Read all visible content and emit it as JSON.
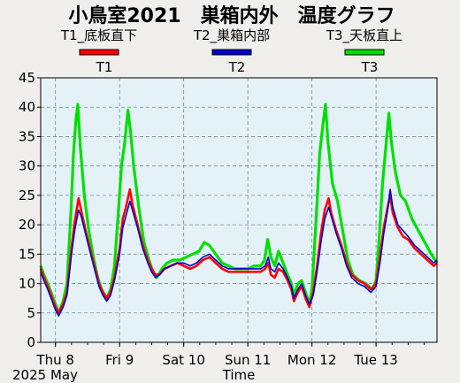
{
  "chart_data": {
    "type": "line",
    "title": "小鳥室2021　巣箱内外　温度グラフ",
    "xlabel": "Time",
    "x_date_label": "2025 May",
    "ylim": [
      0,
      45
    ],
    "y_ticks": [
      0,
      5,
      10,
      15,
      20,
      25,
      30,
      35,
      40,
      45
    ],
    "grid": true,
    "legend_position": "top",
    "x_ticks": [
      {
        "label": "Thu 8",
        "day": 0
      },
      {
        "label": "Fri 9",
        "day": 1
      },
      {
        "label": "Sat 10",
        "day": 2
      },
      {
        "label": "Sun 11",
        "day": 3
      },
      {
        "label": "Mon 12",
        "day": 4
      },
      {
        "label": "Tue 13",
        "day": 5
      }
    ],
    "x_range_days": [
      -0.23,
      5.95
    ],
    "series": [
      {
        "name": "T1",
        "description": "T1_底板直下",
        "color": "#ff0000",
        "points": [
          [
            -0.23,
            12.5
          ],
          [
            -0.18,
            11.0
          ],
          [
            -0.12,
            9.5
          ],
          [
            -0.05,
            7.5
          ],
          [
            0.0,
            6.0
          ],
          [
            0.05,
            5.0
          ],
          [
            0.12,
            6.5
          ],
          [
            0.18,
            8.5
          ],
          [
            0.25,
            16.0
          ],
          [
            0.3,
            20.5
          ],
          [
            0.36,
            24.5
          ],
          [
            0.4,
            22.5
          ],
          [
            0.48,
            18.5
          ],
          [
            0.56,
            15.0
          ],
          [
            0.62,
            12.5
          ],
          [
            0.68,
            10.0
          ],
          [
            0.74,
            8.5
          ],
          [
            0.8,
            7.5
          ],
          [
            0.86,
            8.5
          ],
          [
            0.92,
            11.0
          ],
          [
            1.0,
            16.0
          ],
          [
            1.05,
            21.0
          ],
          [
            1.1,
            23.0
          ],
          [
            1.16,
            26.0
          ],
          [
            1.2,
            23.5
          ],
          [
            1.28,
            20.0
          ],
          [
            1.36,
            16.5
          ],
          [
            1.44,
            14.0
          ],
          [
            1.5,
            12.5
          ],
          [
            1.56,
            11.5
          ],
          [
            1.62,
            11.5
          ],
          [
            1.7,
            12.5
          ],
          [
            1.8,
            13.0
          ],
          [
            1.9,
            13.5
          ],
          [
            2.0,
            13.0
          ],
          [
            2.1,
            12.5
          ],
          [
            2.2,
            13.0
          ],
          [
            2.3,
            14.0
          ],
          [
            2.4,
            14.5
          ],
          [
            2.5,
            13.5
          ],
          [
            2.6,
            12.5
          ],
          [
            2.7,
            12.0
          ],
          [
            2.8,
            12.0
          ],
          [
            2.9,
            12.0
          ],
          [
            3.0,
            12.0
          ],
          [
            3.1,
            12.0
          ],
          [
            3.2,
            12.0
          ],
          [
            3.27,
            12.5
          ],
          [
            3.32,
            13.5
          ],
          [
            3.36,
            11.5
          ],
          [
            3.42,
            11.0
          ],
          [
            3.48,
            12.5
          ],
          [
            3.55,
            12.0
          ],
          [
            3.62,
            10.5
          ],
          [
            3.68,
            9.0
          ],
          [
            3.72,
            7.0
          ],
          [
            3.78,
            8.5
          ],
          [
            3.84,
            9.5
          ],
          [
            3.9,
            7.5
          ],
          [
            3.96,
            6.0
          ],
          [
            4.02,
            8.5
          ],
          [
            4.08,
            13.0
          ],
          [
            4.14,
            18.5
          ],
          [
            4.2,
            22.5
          ],
          [
            4.26,
            24.5
          ],
          [
            4.3,
            22.0
          ],
          [
            4.38,
            19.0
          ],
          [
            4.46,
            16.5
          ],
          [
            4.54,
            13.5
          ],
          [
            4.62,
            11.5
          ],
          [
            4.72,
            10.5
          ],
          [
            4.82,
            10.0
          ],
          [
            4.92,
            9.0
          ],
          [
            5.0,
            10.0
          ],
          [
            5.06,
            14.5
          ],
          [
            5.12,
            19.5
          ],
          [
            5.18,
            23.0
          ],
          [
            5.22,
            25.0
          ],
          [
            5.26,
            22.0
          ],
          [
            5.34,
            19.5
          ],
          [
            5.42,
            18.0
          ],
          [
            5.5,
            17.5
          ],
          [
            5.6,
            16.0
          ],
          [
            5.7,
            15.0
          ],
          [
            5.8,
            14.0
          ],
          [
            5.9,
            13.0
          ],
          [
            5.95,
            13.5
          ]
        ]
      },
      {
        "name": "T2",
        "description": "T2_巣箱内部",
        "color": "#0000cc",
        "points": [
          [
            -0.23,
            12.0
          ],
          [
            -0.18,
            10.5
          ],
          [
            -0.12,
            9.0
          ],
          [
            -0.05,
            7.0
          ],
          [
            0.0,
            5.5
          ],
          [
            0.05,
            4.5
          ],
          [
            0.12,
            6.0
          ],
          [
            0.18,
            8.0
          ],
          [
            0.25,
            15.0
          ],
          [
            0.3,
            19.0
          ],
          [
            0.36,
            22.5
          ],
          [
            0.4,
            21.5
          ],
          [
            0.48,
            18.0
          ],
          [
            0.56,
            14.5
          ],
          [
            0.62,
            12.0
          ],
          [
            0.68,
            9.5
          ],
          [
            0.74,
            8.0
          ],
          [
            0.8,
            7.0
          ],
          [
            0.86,
            8.0
          ],
          [
            0.92,
            10.5
          ],
          [
            1.0,
            15.0
          ],
          [
            1.05,
            19.5
          ],
          [
            1.1,
            21.5
          ],
          [
            1.16,
            24.0
          ],
          [
            1.2,
            22.5
          ],
          [
            1.28,
            19.5
          ],
          [
            1.36,
            16.0
          ],
          [
            1.44,
            13.5
          ],
          [
            1.5,
            12.0
          ],
          [
            1.56,
            11.0
          ],
          [
            1.62,
            11.5
          ],
          [
            1.7,
            12.5
          ],
          [
            1.8,
            13.0
          ],
          [
            1.9,
            13.5
          ],
          [
            2.0,
            13.5
          ],
          [
            2.1,
            13.0
          ],
          [
            2.2,
            13.5
          ],
          [
            2.3,
            14.5
          ],
          [
            2.4,
            15.0
          ],
          [
            2.5,
            14.0
          ],
          [
            2.6,
            13.0
          ],
          [
            2.7,
            12.5
          ],
          [
            2.8,
            12.5
          ],
          [
            2.9,
            12.5
          ],
          [
            3.0,
            12.5
          ],
          [
            3.1,
            12.5
          ],
          [
            3.2,
            12.5
          ],
          [
            3.27,
            13.0
          ],
          [
            3.32,
            14.5
          ],
          [
            3.36,
            12.5
          ],
          [
            3.42,
            12.0
          ],
          [
            3.48,
            13.5
          ],
          [
            3.55,
            12.5
          ],
          [
            3.62,
            11.0
          ],
          [
            3.68,
            9.5
          ],
          [
            3.72,
            7.5
          ],
          [
            3.78,
            9.0
          ],
          [
            3.84,
            10.0
          ],
          [
            3.9,
            8.0
          ],
          [
            3.96,
            6.5
          ],
          [
            4.02,
            8.0
          ],
          [
            4.08,
            12.0
          ],
          [
            4.14,
            17.0
          ],
          [
            4.2,
            21.0
          ],
          [
            4.26,
            23.0
          ],
          [
            4.3,
            21.5
          ],
          [
            4.38,
            18.5
          ],
          [
            4.46,
            16.0
          ],
          [
            4.54,
            13.0
          ],
          [
            4.62,
            11.0
          ],
          [
            4.72,
            10.0
          ],
          [
            4.82,
            9.5
          ],
          [
            4.92,
            8.5
          ],
          [
            5.0,
            9.5
          ],
          [
            5.06,
            13.5
          ],
          [
            5.12,
            18.5
          ],
          [
            5.18,
            22.5
          ],
          [
            5.22,
            26.0
          ],
          [
            5.26,
            23.0
          ],
          [
            5.34,
            20.0
          ],
          [
            5.42,
            19.0
          ],
          [
            5.5,
            18.0
          ],
          [
            5.6,
            16.5
          ],
          [
            5.7,
            15.5
          ],
          [
            5.8,
            14.5
          ],
          [
            5.9,
            13.5
          ],
          [
            5.95,
            14.0
          ]
        ]
      },
      {
        "name": "T3",
        "description": "T3_天板直上",
        "color": "#00e000",
        "points": [
          [
            -0.23,
            13.0
          ],
          [
            -0.18,
            11.5
          ],
          [
            -0.12,
            10.0
          ],
          [
            -0.05,
            8.0
          ],
          [
            0.0,
            6.5
          ],
          [
            0.05,
            5.0
          ],
          [
            0.12,
            7.0
          ],
          [
            0.18,
            10.0
          ],
          [
            0.24,
            22.0
          ],
          [
            0.28,
            32.0
          ],
          [
            0.32,
            38.0
          ],
          [
            0.35,
            40.5
          ],
          [
            0.39,
            33.0
          ],
          [
            0.45,
            25.0
          ],
          [
            0.52,
            19.0
          ],
          [
            0.6,
            14.0
          ],
          [
            0.66,
            11.0
          ],
          [
            0.72,
            9.0
          ],
          [
            0.8,
            7.5
          ],
          [
            0.86,
            9.0
          ],
          [
            0.92,
            13.0
          ],
          [
            0.98,
            22.0
          ],
          [
            1.03,
            30.0
          ],
          [
            1.08,
            34.0
          ],
          [
            1.13,
            39.5
          ],
          [
            1.17,
            36.0
          ],
          [
            1.22,
            30.0
          ],
          [
            1.3,
            23.0
          ],
          [
            1.38,
            17.0
          ],
          [
            1.46,
            14.0
          ],
          [
            1.52,
            12.0
          ],
          [
            1.58,
            11.0
          ],
          [
            1.66,
            12.5
          ],
          [
            1.74,
            13.5
          ],
          [
            1.84,
            14.0
          ],
          [
            1.94,
            14.0
          ],
          [
            2.04,
            14.5
          ],
          [
            2.14,
            15.0
          ],
          [
            2.24,
            15.5
          ],
          [
            2.32,
            17.0
          ],
          [
            2.4,
            16.5
          ],
          [
            2.5,
            15.0
          ],
          [
            2.6,
            13.5
          ],
          [
            2.7,
            13.0
          ],
          [
            2.8,
            12.5
          ],
          [
            2.9,
            12.5
          ],
          [
            3.0,
            12.5
          ],
          [
            3.1,
            13.0
          ],
          [
            3.2,
            13.0
          ],
          [
            3.26,
            14.0
          ],
          [
            3.31,
            17.5
          ],
          [
            3.36,
            14.5
          ],
          [
            3.42,
            13.0
          ],
          [
            3.48,
            15.5
          ],
          [
            3.55,
            13.5
          ],
          [
            3.62,
            11.5
          ],
          [
            3.68,
            10.0
          ],
          [
            3.72,
            8.0
          ],
          [
            3.78,
            10.0
          ],
          [
            3.84,
            10.5
          ],
          [
            3.9,
            8.5
          ],
          [
            3.96,
            6.5
          ],
          [
            4.0,
            9.0
          ],
          [
            4.06,
            20.0
          ],
          [
            4.12,
            32.0
          ],
          [
            4.17,
            37.0
          ],
          [
            4.21,
            40.5
          ],
          [
            4.25,
            34.0
          ],
          [
            4.32,
            27.0
          ],
          [
            4.4,
            24.0
          ],
          [
            4.48,
            19.0
          ],
          [
            4.56,
            14.0
          ],
          [
            4.64,
            11.5
          ],
          [
            4.74,
            10.5
          ],
          [
            4.84,
            10.0
          ],
          [
            4.94,
            9.0
          ],
          [
            5.0,
            10.5
          ],
          [
            5.05,
            18.0
          ],
          [
            5.1,
            27.0
          ],
          [
            5.15,
            33.0
          ],
          [
            5.2,
            39.0
          ],
          [
            5.24,
            34.0
          ],
          [
            5.3,
            29.0
          ],
          [
            5.38,
            25.0
          ],
          [
            5.46,
            24.0
          ],
          [
            5.56,
            21.0
          ],
          [
            5.66,
            19.0
          ],
          [
            5.76,
            17.0
          ],
          [
            5.86,
            15.0
          ],
          [
            5.95,
            13.5
          ]
        ]
      }
    ]
  },
  "legend": [
    {
      "label": "T1_底板直下",
      "key": "T1",
      "color": "#ff0000"
    },
    {
      "label": "T2_巣箱内部",
      "key": "T2",
      "color": "#0000cc"
    },
    {
      "label": "T3_天板直上",
      "key": "T3",
      "color": "#00e000"
    }
  ]
}
